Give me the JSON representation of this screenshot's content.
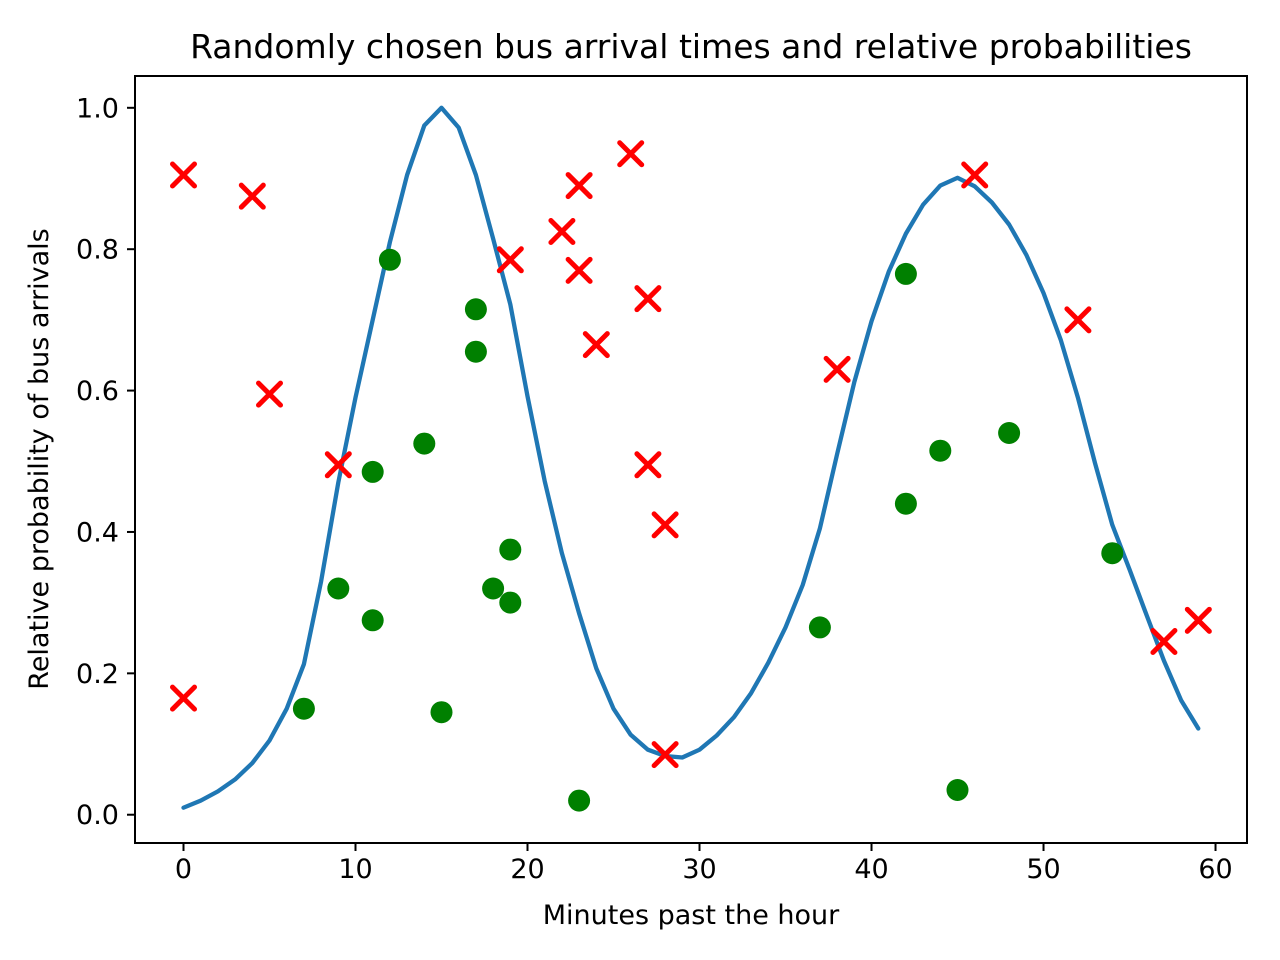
{
  "figure": {
    "background": "#ffffff",
    "text_color": "#000000"
  },
  "chart_data": {
    "type": "line",
    "title": "Randomly chosen bus arrival times and relative probabilities",
    "xlabel": "Minutes past the hour",
    "ylabel": "Relative probability of bus arrivals",
    "xlim": [
      -2.82,
      61.83
    ],
    "ylim": [
      -0.04,
      1.045
    ],
    "grid": false,
    "legend": "none",
    "xticks": {
      "values": [
        0,
        10,
        20,
        30,
        40,
        50,
        60
      ],
      "labels": [
        "0",
        "10",
        "20",
        "30",
        "40",
        "50",
        "60"
      ]
    },
    "yticks": {
      "values": [
        0.0,
        0.2,
        0.4,
        0.6,
        0.8,
        1.0
      ],
      "labels": [
        "0.0",
        "0.2",
        "0.4",
        "0.6",
        "0.8",
        "1.0"
      ]
    },
    "series": [
      {
        "name": "relative-probability-curve",
        "kind": "line",
        "color": "#1f77b4",
        "linewidth": 4.3,
        "x": [
          0,
          1,
          2,
          3,
          4,
          5,
          6,
          7,
          8,
          9,
          10,
          11,
          12,
          13,
          14,
          15,
          16,
          17,
          18,
          19,
          20,
          21,
          22,
          23,
          24,
          25,
          26,
          27,
          28,
          29,
          30,
          31,
          32,
          33,
          34,
          35,
          36,
          37,
          38,
          39,
          40,
          41,
          42,
          43,
          44,
          45,
          46,
          47,
          48,
          49,
          50,
          51,
          52,
          53,
          54,
          55,
          56,
          57,
          58,
          59
        ],
        "y": [
          0.01,
          0.02,
          0.033,
          0.05,
          0.073,
          0.105,
          0.15,
          0.213,
          0.33,
          0.47,
          0.59,
          0.7,
          0.81,
          0.905,
          0.975,
          1.0,
          0.972,
          0.905,
          0.815,
          0.722,
          0.592,
          0.472,
          0.37,
          0.285,
          0.207,
          0.15,
          0.113,
          0.092,
          0.083,
          0.081,
          0.092,
          0.112,
          0.138,
          0.172,
          0.215,
          0.265,
          0.325,
          0.405,
          0.51,
          0.612,
          0.698,
          0.768,
          0.822,
          0.863,
          0.89,
          0.901,
          0.889,
          0.866,
          0.835,
          0.792,
          0.738,
          0.672,
          0.59,
          0.497,
          0.41,
          0.347,
          0.282,
          0.218,
          0.162,
          0.122
        ]
      },
      {
        "name": "arrival-samples-x-markers",
        "kind": "scatter",
        "marker": "x",
        "color": "#ff0000",
        "marker_halfsize": 11,
        "marker_stroke": 5,
        "points": [
          [
            0,
            0.905
          ],
          [
            0,
            0.165
          ],
          [
            4,
            0.875
          ],
          [
            5,
            0.595
          ],
          [
            9,
            0.495
          ],
          [
            19,
            0.785
          ],
          [
            22,
            0.825
          ],
          [
            23,
            0.89
          ],
          [
            23,
            0.77
          ],
          [
            24,
            0.665
          ],
          [
            26,
            0.935
          ],
          [
            27,
            0.73
          ],
          [
            27,
            0.495
          ],
          [
            28,
            0.41
          ],
          [
            28,
            0.085
          ],
          [
            38,
            0.63
          ],
          [
            46,
            0.905
          ],
          [
            52,
            0.7
          ],
          [
            57,
            0.245
          ],
          [
            59,
            0.275
          ]
        ]
      },
      {
        "name": "arrival-samples-dot-markers",
        "kind": "scatter",
        "marker": "circle",
        "color": "#008000",
        "marker_radius": 11,
        "points": [
          [
            7,
            0.15
          ],
          [
            9,
            0.32
          ],
          [
            11,
            0.485
          ],
          [
            11,
            0.275
          ],
          [
            12,
            0.785
          ],
          [
            14,
            0.525
          ],
          [
            15,
            0.145
          ],
          [
            17,
            0.715
          ],
          [
            17,
            0.655
          ],
          [
            18,
            0.32
          ],
          [
            19,
            0.375
          ],
          [
            19,
            0.3
          ],
          [
            23,
            0.02
          ],
          [
            37,
            0.265
          ],
          [
            42,
            0.765
          ],
          [
            42,
            0.44
          ],
          [
            44,
            0.515
          ],
          [
            45,
            0.035
          ],
          [
            48,
            0.54
          ],
          [
            54,
            0.37
          ]
        ]
      }
    ]
  }
}
